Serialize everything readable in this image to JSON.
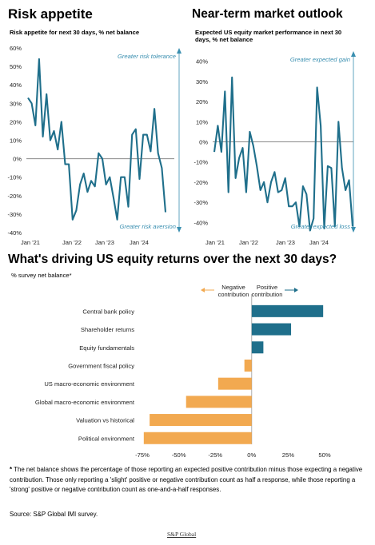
{
  "chart_data": [
    {
      "type": "line",
      "title": "Risk appetite",
      "subtitle": "Risk appetite for next 30 days, % net balance",
      "ylim": [
        -40,
        60
      ],
      "yticks": [
        "60%",
        "50%",
        "40%",
        "30%",
        "20%",
        "10%",
        "0%",
        "-10%",
        "-20%",
        "-30%",
        "-40%"
      ],
      "xtick_labels": [
        "Jan '21",
        "Jan '22",
        "Jan '23",
        "Jan '24"
      ],
      "annotations": [
        "Greater risk tolerance",
        "Greater risk aversion"
      ],
      "series": [
        {
          "values": [
            33,
            30,
            18,
            54,
            12,
            35,
            10,
            15,
            5,
            20,
            -3,
            -3,
            -33,
            -28,
            -14,
            -8,
            -18,
            -12,
            -15,
            3,
            0,
            -14,
            -10,
            -21,
            -33,
            -10,
            -10,
            -26,
            13,
            16,
            -11,
            13,
            13,
            4,
            27,
            3,
            -5,
            -29
          ]
        }
      ],
      "grid": false
    },
    {
      "type": "line",
      "title": "Near-term market outlook",
      "subtitle": "Expected US equity market performance in next 30 days, % net balance",
      "ylim": [
        -45,
        45
      ],
      "yticks": [
        "40%",
        "30%",
        "20%",
        "10%",
        "0%",
        "-10%",
        "-20%",
        "-30%",
        "-40%"
      ],
      "xtick_labels": [
        "Jan '21",
        "Jan '22",
        "Jan '23",
        "Jan '24"
      ],
      "annotations": [
        "Greater expected gain",
        "Greater expected loss"
      ],
      "series": [
        {
          "values": [
            -5,
            8,
            -5,
            25,
            -25,
            32,
            -18,
            -8,
            -3,
            -25,
            5,
            -2,
            -12,
            -24,
            -20,
            -30,
            -20,
            -15,
            -25,
            -24,
            -18,
            -32,
            -32,
            -30,
            -42,
            -22,
            -26,
            -44,
            -38,
            27,
            8,
            -43,
            -12,
            -13,
            -42,
            10,
            -13,
            -24,
            -19,
            -42
          ]
        }
      ],
      "grid": false
    },
    {
      "type": "bar",
      "orientation": "horizontal",
      "title": "What's driving US equity returns over the next 30 days?",
      "subtitle": "% survey net balance*",
      "categories": [
        "Central bank policy",
        "Shareholder returns",
        "Equity fundamentals",
        "Government fiscal policy",
        "US macro-economic environment",
        "Global macro-economic environment",
        "Valuation vs historical",
        "Political environment"
      ],
      "values": [
        49,
        27,
        8,
        -5,
        -23,
        -45,
        -70,
        -74
      ],
      "xlim": [
        -75,
        50
      ],
      "xtick_labels": [
        "-75%",
        "-50%",
        "-25%",
        "0%",
        "25%",
        "50%"
      ],
      "legend": [
        "Negative contribution",
        "Positive contribution"
      ],
      "colors": {
        "positive": "#1f6f8b",
        "negative": "#f2a950"
      }
    }
  ],
  "footnote": "The net balance shows the percentage of those reporting an expected positive contribution minus those expecting a negative contribution. Those only reporting a 'slight' positive or negative contribution count as half a response, while those reporting a 'strong' positive or negative contribution count as one-and-a-half responses.",
  "footnote_marker": "*",
  "source": "Source: S&P Global IMI survey.",
  "footer": "S&P Global",
  "colors": {
    "line": "#1f6f8b",
    "zero_line": "#8a8a8a",
    "annotation": "#3a8fb0",
    "arrow": "#3a8fb0"
  }
}
